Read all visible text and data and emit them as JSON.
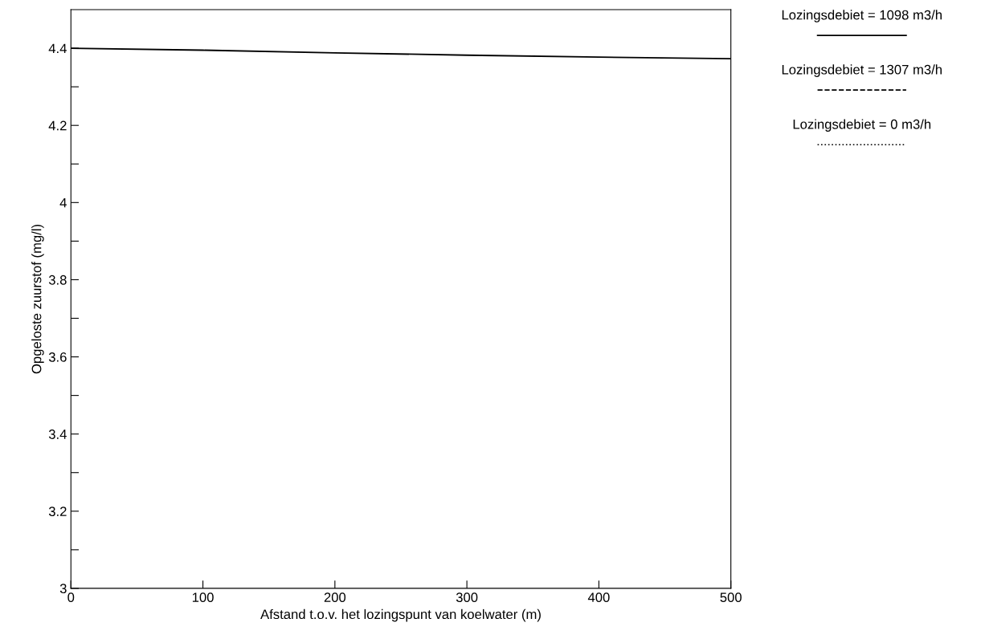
{
  "chart_data": {
    "type": "line",
    "xlabel": "Afstand t.o.v. het lozingspunt van koelwater (m)",
    "ylabel": "Opgeloste zuurstof (mg/l)",
    "x": [
      0,
      100,
      200,
      300,
      400,
      500
    ],
    "series": [
      {
        "name": "Lozingsdebiet = 1098 m3/h",
        "color": "#000000",
        "line_style": "solid",
        "values": [
          4.4,
          4.395,
          4.388,
          4.382,
          4.377,
          4.373
        ]
      },
      {
        "name": "Lozingsdebiet = 1307 m3/h",
        "color": "#000000",
        "line_style": "dashed",
        "values": [
          null,
          null,
          null,
          null,
          null,
          null
        ]
      },
      {
        "name": "Lozingsdebiet = 0 m3/h",
        "color": "#000000",
        "line_style": "dotted",
        "values": [
          null,
          null,
          null,
          null,
          null,
          null
        ]
      }
    ],
    "xlim": [
      0,
      500
    ],
    "xticks": [
      0,
      100,
      200,
      300,
      400,
      500
    ],
    "ylim": [
      3,
      4.5
    ],
    "yticks": [
      3,
      {
        "value": 3.1,
        "label": null
      },
      3.2,
      {
        "value": 3.3,
        "label": null
      },
      3.4,
      {
        "value": 3.5,
        "label": null
      },
      3.6,
      {
        "value": 3.7,
        "label": null
      },
      3.8,
      {
        "value": 3.9,
        "label": null
      },
      4,
      {
        "value": 4.1,
        "label": null
      },
      4.2,
      {
        "value": 4.3,
        "label": null
      },
      4.4
    ],
    "legend": "top right",
    "grid": false,
    "marker": "none"
  }
}
